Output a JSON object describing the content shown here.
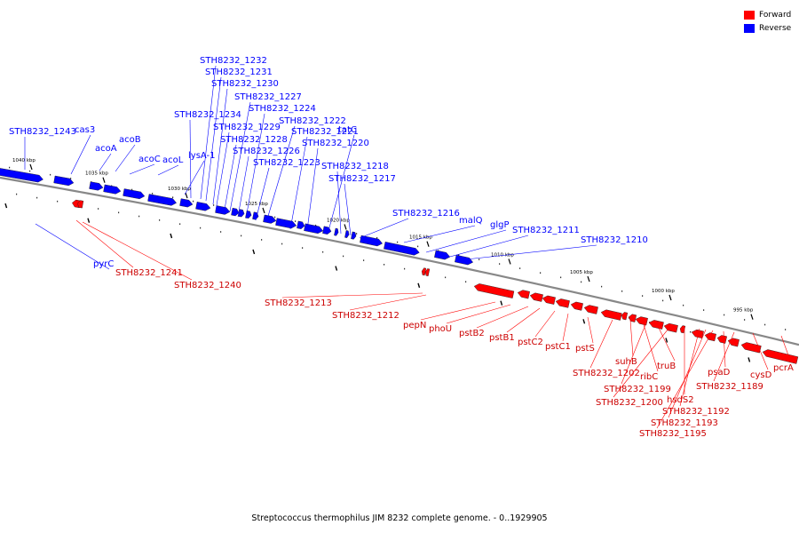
{
  "colors": {
    "forward": "#ff0000",
    "reverse": "#0000ff",
    "backbone": "#888888",
    "ticks": "#000000"
  },
  "legend": {
    "forward_label": "Forward",
    "reverse_label": "Reverse"
  },
  "caption": "Streptococcus thermophilus JIM 8232 complete genome. - 0..1929905",
  "scale_labels": [
    "1040 kbp",
    "1035 kbp",
    "1030 kbp",
    "1025 kbp",
    "1020 kbp",
    "1015 kbp",
    "1010 kbp",
    "1005 kbp",
    "1000 kbp",
    "995 kbp"
  ],
  "reverse_genes": [
    "STH8232_1243",
    "cas3",
    "acoA",
    "acoB",
    "acoC",
    "acoL",
    "lysA-1",
    "STH8232_1234",
    "STH8232_1232",
    "STH8232_1231",
    "STH8232_1230",
    "STH8232_1229",
    "STH8232_1228",
    "STH8232_1227",
    "STH8232_1226",
    "STH8232_1224",
    "STH8232_1223",
    "STH8232_1222",
    "STH8232_1221",
    "STH8232_1220",
    "tatC",
    "STH8232_1218",
    "STH8232_1217",
    "STH8232_1216",
    "malQ",
    "glgP",
    "STH8232_1211",
    "STH8232_1210",
    "pyrC"
  ],
  "forward_genes": [
    "STH8232_1241",
    "STH8232_1240",
    "STH8232_1213",
    "STH8232_1212",
    "pepN",
    "phoU",
    "pstB2",
    "pstB1",
    "pstC2",
    "pstC1",
    "pstS",
    "STH8232_1202",
    "suhB",
    "ribC",
    "STH8232_1199",
    "truB",
    "STH8232_1200",
    "hsdS2",
    "STH8232_1192",
    "STH8232_1193",
    "STH8232_1195",
    "psaD",
    "STH8232_1189",
    "cysD",
    "pcrA"
  ]
}
